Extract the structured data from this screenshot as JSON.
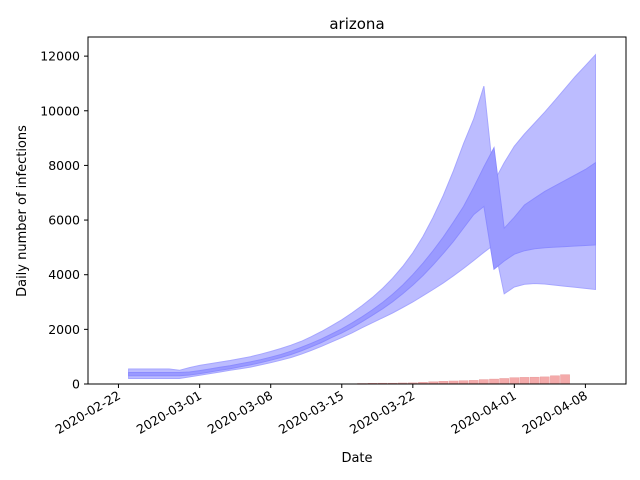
{
  "chart_data": {
    "type": "area",
    "title": "arizona",
    "xlabel": "Date",
    "ylabel": "Daily number of infections",
    "x_axis_type": "date",
    "xlim": [
      "2020-02-19",
      "2020-04-12"
    ],
    "ylim": [
      0,
      12700
    ],
    "x_ticks": [
      "2020-02-22",
      "2020-03-01",
      "2020-03-08",
      "2020-03-15",
      "2020-03-22",
      "2020-04-01",
      "2020-04-08"
    ],
    "y_ticks": [
      0,
      2000,
      4000,
      6000,
      8000,
      10000,
      12000
    ],
    "grid": false,
    "colors": {
      "outer_band": "#bcbcff",
      "inner_band": "#9a9aff",
      "bars": "#f4aaaa",
      "bar_edge": "#e89a9a"
    },
    "band_x": [
      "2020-02-23",
      "2020-02-24",
      "2020-02-25",
      "2020-02-26",
      "2020-02-27",
      "2020-02-28",
      "2020-02-29",
      "2020-03-01",
      "2020-03-02",
      "2020-03-03",
      "2020-03-04",
      "2020-03-05",
      "2020-03-06",
      "2020-03-07",
      "2020-03-08",
      "2020-03-09",
      "2020-03-10",
      "2020-03-11",
      "2020-03-12",
      "2020-03-13",
      "2020-03-14",
      "2020-03-15",
      "2020-03-16",
      "2020-03-17",
      "2020-03-18",
      "2020-03-19",
      "2020-03-20",
      "2020-03-21",
      "2020-03-22",
      "2020-03-23",
      "2020-03-24",
      "2020-03-25",
      "2020-03-26",
      "2020-03-27",
      "2020-03-28",
      "2020-03-29",
      "2020-03-30",
      "2020-03-31",
      "2020-04-01",
      "2020-04-02",
      "2020-04-03",
      "2020-04-04",
      "2020-04-05",
      "2020-04-06",
      "2020-04-07",
      "2020-04-08",
      "2020-04-09"
    ],
    "series": [
      {
        "role": "outer_lower",
        "values": [
          200,
          200,
          200,
          200,
          200,
          200,
          260,
          320,
          380,
          440,
          500,
          560,
          620,
          700,
          780,
          870,
          970,
          1090,
          1230,
          1380,
          1540,
          1700,
          1870,
          2060,
          2240,
          2420,
          2600,
          2800,
          3000,
          3230,
          3460,
          3700,
          3960,
          4230,
          4520,
          4820,
          5100,
          3300,
          3550,
          3650,
          3680,
          3660,
          3620,
          3580,
          3540,
          3500,
          3460
        ]
      },
      {
        "role": "inner_lower",
        "values": [
          300,
          300,
          300,
          300,
          300,
          300,
          330,
          380,
          440,
          500,
          560,
          630,
          700,
          780,
          870,
          970,
          1080,
          1210,
          1360,
          1520,
          1700,
          1870,
          2060,
          2280,
          2510,
          2750,
          3010,
          3300,
          3620,
          3970,
          4360,
          4780,
          5220,
          5710,
          6200,
          6500,
          4200,
          4500,
          4750,
          4880,
          4950,
          4990,
          5010,
          5030,
          5050,
          5070,
          5090
        ]
      },
      {
        "role": "inner_upper",
        "values": [
          420,
          420,
          420,
          420,
          420,
          420,
          440,
          490,
          550,
          610,
          670,
          740,
          810,
          890,
          980,
          1080,
          1200,
          1340,
          1490,
          1650,
          1830,
          2020,
          2230,
          2460,
          2710,
          2980,
          3280,
          3620,
          4000,
          4420,
          4880,
          5380,
          5920,
          6500,
          7200,
          7950,
          8650,
          5700,
          6100,
          6550,
          6800,
          7050,
          7250,
          7450,
          7650,
          7850,
          8100
        ]
      },
      {
        "role": "outer_upper",
        "values": [
          550,
          550,
          550,
          550,
          550,
          500,
          600,
          680,
          740,
          800,
          860,
          930,
          1000,
          1090,
          1190,
          1300,
          1420,
          1560,
          1730,
          1920,
          2130,
          2350,
          2600,
          2870,
          3160,
          3490,
          3870,
          4300,
          4800,
          5400,
          6100,
          6900,
          7800,
          8800,
          9700,
          10900,
          7400,
          8100,
          8700,
          9150,
          9550,
          9950,
          10380,
          10820,
          11250,
          11650,
          12050
        ]
      }
    ],
    "bars": {
      "x": [
        "2020-03-17",
        "2020-03-18",
        "2020-03-19",
        "2020-03-20",
        "2020-03-21",
        "2020-03-22",
        "2020-03-23",
        "2020-03-24",
        "2020-03-25",
        "2020-03-26",
        "2020-03-27",
        "2020-03-28",
        "2020-03-29",
        "2020-03-30",
        "2020-03-31",
        "2020-04-01",
        "2020-04-02",
        "2020-04-03",
        "2020-04-04",
        "2020-04-05",
        "2020-04-06"
      ],
      "values": [
        20,
        25,
        30,
        30,
        35,
        40,
        60,
        80,
        100,
        110,
        120,
        130,
        160,
        180,
        200,
        230,
        240,
        250,
        260,
        300,
        340
      ]
    }
  }
}
